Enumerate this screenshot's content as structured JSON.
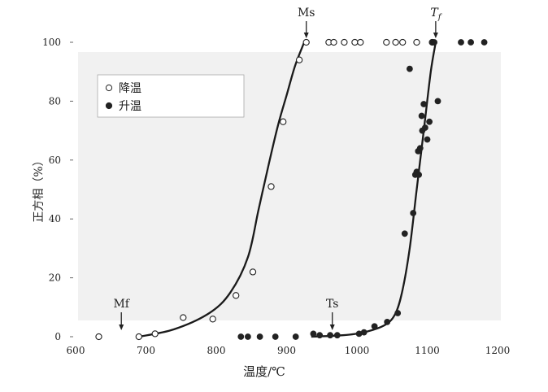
{
  "chart_data": {
    "type": "scatter",
    "title": "",
    "xlabel": "温度/℃",
    "ylabel": "正方相（%）",
    "xlim": [
      600,
      1200
    ],
    "ylim": [
      0,
      100
    ],
    "xticks": [
      600,
      700,
      800,
      900,
      1000,
      1100,
      1200
    ],
    "yticks": [
      0,
      20,
      40,
      60,
      80,
      100
    ],
    "legend": {
      "placement": "top-left",
      "entries": [
        {
          "symbol": "○",
          "label": "降温"
        },
        {
          "symbol": "●",
          "label": "升温"
        }
      ]
    },
    "series": [
      {
        "name": "降温",
        "marker": "open-circle",
        "x": [
          633,
          690,
          713,
          753,
          795,
          828,
          852,
          878,
          895,
          918,
          928,
          960,
          967,
          982,
          997,
          1005,
          1042,
          1055,
          1065,
          1085,
          1107
        ],
        "y": [
          0,
          0,
          1,
          6.5,
          6,
          14,
          22,
          51,
          73,
          94,
          100,
          100,
          100,
          100,
          100,
          100,
          100,
          100,
          100,
          100,
          100
        ]
      },
      {
        "name": "升温",
        "marker": "filled-circle",
        "x": [
          835,
          845,
          862,
          884,
          913,
          938,
          947,
          962,
          972,
          1003,
          1010,
          1025,
          1043,
          1058,
          1068,
          1075,
          1080,
          1083,
          1085,
          1087,
          1088,
          1090,
          1092,
          1093,
          1095,
          1097,
          1100,
          1103,
          1108,
          1110,
          1115,
          1148,
          1162,
          1181
        ],
        "y": [
          0,
          0,
          0,
          0,
          0,
          1,
          0.5,
          0.5,
          0.5,
          1,
          1.5,
          3.5,
          5,
          8,
          35,
          91,
          42,
          55,
          56,
          63,
          55,
          64,
          75,
          70,
          79,
          71,
          67,
          73,
          100,
          100,
          80,
          100,
          100,
          100
        ]
      }
    ],
    "curves": [
      {
        "name": "降温",
        "x": [
          690,
          740,
          790,
          820,
          845,
          860,
          875,
          888,
          900,
          912,
          925
        ],
        "y": [
          0,
          2.5,
          8,
          15,
          27,
          43,
          59,
          72,
          82,
          92,
          100
        ]
      },
      {
        "name": "升温",
        "x": [
          935,
          980,
          1010,
          1040,
          1055,
          1065,
          1075,
          1085,
          1095,
          1105,
          1112
        ],
        "y": [
          0,
          0.5,
          1.5,
          4,
          8,
          16,
          30,
          50,
          70,
          90,
          100
        ]
      }
    ],
    "annotations": [
      {
        "text": "Ms",
        "x": 928,
        "y": 100
      },
      {
        "text": "T",
        "sub": "f",
        "x": 1112,
        "y": 100
      },
      {
        "text": "Mf",
        "x": 665,
        "y": 0
      },
      {
        "text": "Ts",
        "x": 965,
        "y": 0
      }
    ]
  }
}
